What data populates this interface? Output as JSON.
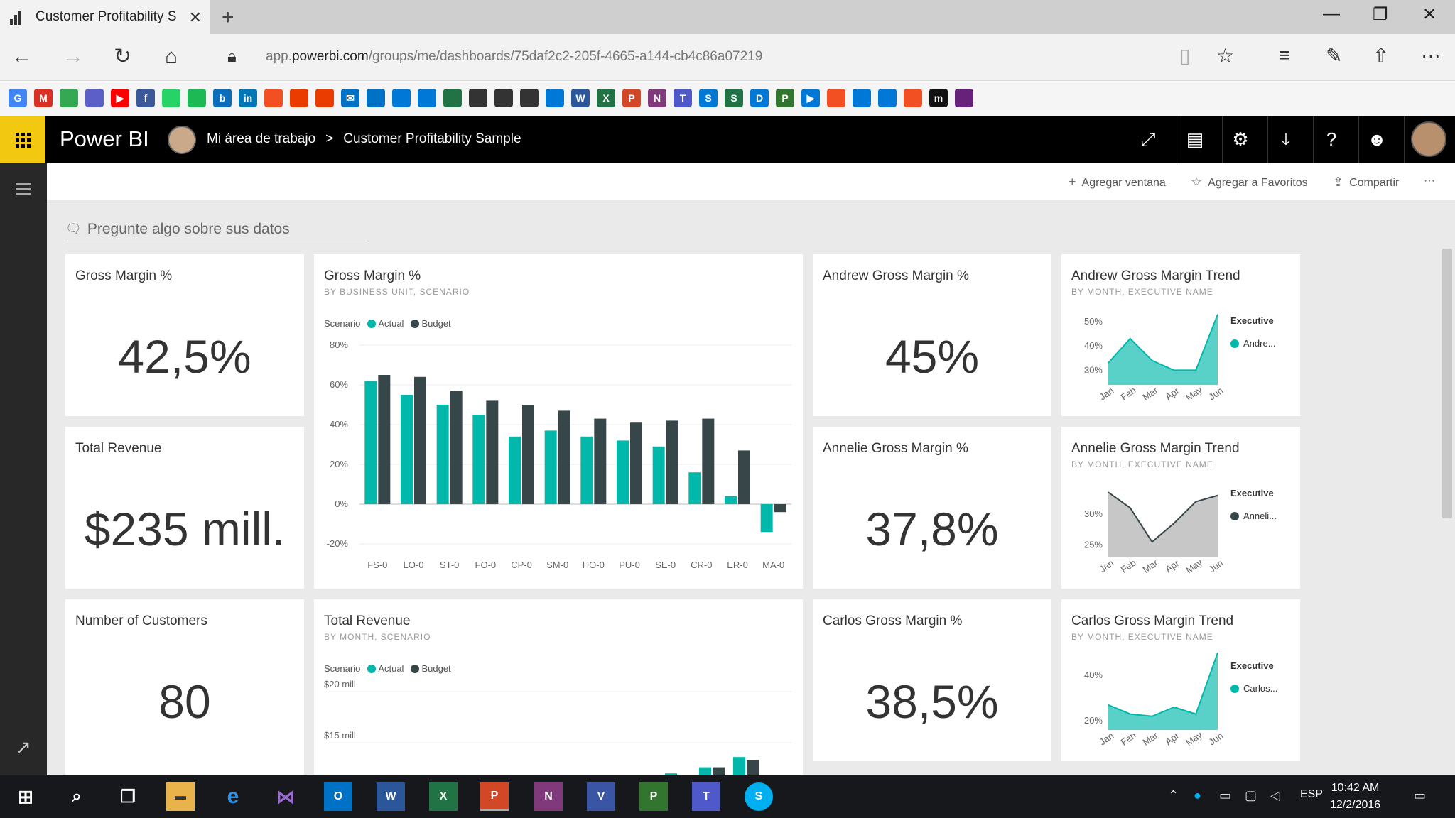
{
  "browser": {
    "tab_title": "Customer Profitability S",
    "tab_close": "✕",
    "new_tab": "+",
    "url_prefix": "app.",
    "url_domain": "powerbi.com",
    "url_path": "/groups/me/dashboards/75daf2c2-205f-4665-a144-cb4c86a07219",
    "favorites": [
      {
        "letter": "G",
        "color": "#4285f4"
      },
      {
        "letter": "M",
        "color": "#d93025"
      },
      {
        "letter": "",
        "color": "#34a853"
      },
      {
        "letter": "",
        "color": "#5b5fc7"
      },
      {
        "letter": "▶",
        "color": "#ff0000"
      },
      {
        "letter": "f",
        "color": "#3b5998"
      },
      {
        "letter": "",
        "color": "#25d366"
      },
      {
        "letter": "",
        "color": "#1db954"
      },
      {
        "letter": "b",
        "color": "#0c6dba"
      },
      {
        "letter": "in",
        "color": "#0077b5"
      },
      {
        "letter": "",
        "color": "#f25022"
      },
      {
        "letter": "",
        "color": "#eb3c00"
      },
      {
        "letter": "",
        "color": "#eb3c00"
      },
      {
        "letter": "✉",
        "color": "#0072c6"
      },
      {
        "letter": "",
        "color": "#0072c6"
      },
      {
        "letter": "",
        "color": "#0078d7"
      },
      {
        "letter": "",
        "color": "#0078d7"
      },
      {
        "letter": "",
        "color": "#217346"
      },
      {
        "letter": "",
        "color": "#333333"
      },
      {
        "letter": "",
        "color": "#333333"
      },
      {
        "letter": "",
        "color": "#333333"
      },
      {
        "letter": "",
        "color": "#0078d7"
      },
      {
        "letter": "W",
        "color": "#2b579a"
      },
      {
        "letter": "X",
        "color": "#217346"
      },
      {
        "letter": "P",
        "color": "#d24726"
      },
      {
        "letter": "N",
        "color": "#80397b"
      },
      {
        "letter": "T",
        "color": "#5059c9"
      },
      {
        "letter": "S",
        "color": "#0078d7"
      },
      {
        "letter": "S",
        "color": "#217346"
      },
      {
        "letter": "D",
        "color": "#0078d7"
      },
      {
        "letter": "P",
        "color": "#31752f"
      },
      {
        "letter": "▶",
        "color": "#0078d7"
      },
      {
        "letter": "",
        "color": "#f25022"
      },
      {
        "letter": "",
        "color": "#0078d7"
      },
      {
        "letter": "",
        "color": "#0078d7"
      },
      {
        "letter": "",
        "color": "#f25022"
      },
      {
        "letter": "m",
        "color": "#111111"
      },
      {
        "letter": "",
        "color": "#68217a"
      }
    ]
  },
  "header": {
    "logo": "Power BI",
    "workspace": "Mi área de trabajo",
    "separator": ">",
    "dashboard": "Customer Profitability Sample"
  },
  "actions": {
    "add_tile": "Agregar ventana",
    "add_favorite": "Agregar a Favoritos",
    "share": "Compartir",
    "more": "···"
  },
  "qna": {
    "placeholder": "Pregunte algo sobre sus datos"
  },
  "tiles": {
    "gm_pct": {
      "title": "Gross Margin %",
      "value": "42,5%"
    },
    "total_revenue": {
      "title": "Total Revenue",
      "value": "$235 mill."
    },
    "num_customers": {
      "title": "Number of Customers",
      "value": "80"
    },
    "andrew_gm": {
      "title": "Andrew Gross Margin %",
      "value": "45%"
    },
    "annelie_gm": {
      "title": "Annelie Gross Margin %",
      "value": "37,8%"
    },
    "carlos_gm": {
      "title": "Carlos Gross Margin %",
      "value": "38,5%"
    },
    "gm_by_bu": {
      "title": "Gross Margin %",
      "subtitle": "BY BUSINESS UNIT, SCENARIO",
      "legend_title": "Scenario",
      "legend": [
        "Actual",
        "Budget"
      ]
    },
    "rev_by_month": {
      "title": "Total Revenue",
      "subtitle": "BY MONTH, SCENARIO",
      "legend_title": "Scenario",
      "legend": [
        "Actual",
        "Budget"
      ]
    },
    "andrew_trend": {
      "title": "Andrew Gross Margin Trend",
      "subtitle": "BY MONTH, EXECUTIVE NAME",
      "legend_title": "Executive",
      "legend_item": "Andre..."
    },
    "annelie_trend": {
      "title": "Annelie Gross Margin Trend",
      "subtitle": "BY MONTH, EXECUTIVE NAME",
      "legend_title": "Executive",
      "legend_item": "Anneli..."
    },
    "carlos_trend": {
      "title": "Carlos Gross Margin Trend",
      "subtitle": "BY MONTH, EXECUTIVE NAME",
      "legend_title": "Executive",
      "legend_item": "Carlos..."
    }
  },
  "colors": {
    "actual": "#01b8aa",
    "budget": "#374649",
    "annelie": "#a9a9a9",
    "accent": "#f2c811"
  },
  "chart_data": [
    {
      "type": "bar",
      "title": "Gross Margin %",
      "subtitle": "BY BUSINESS UNIT, SCENARIO",
      "categories": [
        "FS-0",
        "LO-0",
        "ST-0",
        "FO-0",
        "CP-0",
        "SM-0",
        "HO-0",
        "PU-0",
        "SE-0",
        "CR-0",
        "ER-0",
        "MA-0"
      ],
      "series": [
        {
          "name": "Actual",
          "values": [
            62,
            55,
            50,
            45,
            34,
            37,
            34,
            32,
            29,
            16,
            4,
            -14
          ]
        },
        {
          "name": "Budget",
          "values": [
            65,
            64,
            57,
            52,
            50,
            47,
            43,
            41,
            42,
            43,
            27,
            -4
          ]
        }
      ],
      "ylim": [
        -20,
        80
      ],
      "yticks": [
        "80%",
        "60%",
        "40%",
        "20%",
        "0%",
        "-20%"
      ],
      "yticks_values": [
        80,
        60,
        40,
        20,
        0,
        -20
      ],
      "legend_title": "Scenario"
    },
    {
      "type": "bar",
      "title": "Total Revenue",
      "subtitle": "BY MONTH, SCENARIO",
      "visible_yticks": [
        "$20 mill.",
        "$15 mill."
      ],
      "yticks_values": [
        20,
        15
      ],
      "series": [
        {
          "name": "Actual",
          "values": [
            11.6,
            11.5,
            12,
            12.6,
            13.6
          ]
        },
        {
          "name": "Budget",
          "values": [
            11.3,
            11.0,
            11.8,
            12.6,
            13.3
          ]
        }
      ],
      "legend_title": "Scenario"
    },
    {
      "type": "area",
      "title": "Andrew Gross Margin Trend",
      "categories": [
        "Jan",
        "Feb",
        "Mar",
        "Apr",
        "May",
        "Jun"
      ],
      "series": [
        {
          "name": "Andre...",
          "values": [
            33,
            43,
            34,
            30,
            30,
            53
          ]
        }
      ],
      "ylim": [
        24,
        52
      ],
      "yticks": [
        "50%",
        "40%",
        "30%"
      ],
      "yticks_values": [
        50,
        40,
        30
      ]
    },
    {
      "type": "area",
      "title": "Annelie Gross Margin Trend",
      "categories": [
        "Jan",
        "Feb",
        "Mar",
        "Apr",
        "May",
        "Jun"
      ],
      "series": [
        {
          "name": "Anneli...",
          "values": [
            33.5,
            31,
            25.5,
            28.5,
            32,
            33
          ]
        }
      ],
      "ylim": [
        23,
        34
      ],
      "yticks": [
        "30%",
        "25%"
      ],
      "yticks_values": [
        30,
        25
      ]
    },
    {
      "type": "area",
      "title": "Carlos Gross Margin Trend",
      "categories": [
        "Jan",
        "Feb",
        "Mar",
        "Apr",
        "May",
        "Jun"
      ],
      "series": [
        {
          "name": "Carlos...",
          "values": [
            27,
            23,
            22,
            26,
            23,
            50
          ]
        }
      ],
      "ylim": [
        16,
        46
      ],
      "yticks": [
        "40%",
        "20%"
      ],
      "yticks_values": [
        40,
        20
      ]
    }
  ],
  "taskbar": {
    "lang": "ESP",
    "time": "10:42 AM",
    "date": "12/2/2016"
  }
}
